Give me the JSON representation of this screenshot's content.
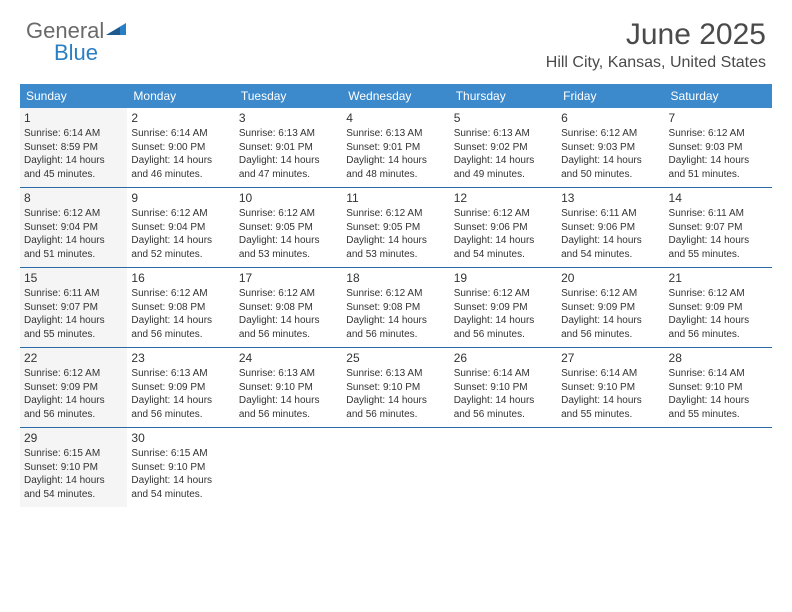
{
  "logo": {
    "text1": "General",
    "text2": "Blue"
  },
  "title": "June 2025",
  "location": "Hill City, Kansas, United States",
  "colors": {
    "header_bg": "#3c8acc",
    "header_text": "#ffffff",
    "row_border": "#2a6aa8",
    "shade_bg": "#f5f5f5",
    "logo_gray": "#6a6a6a",
    "logo_blue": "#2a7fc4"
  },
  "day_labels": [
    "Sunday",
    "Monday",
    "Tuesday",
    "Wednesday",
    "Thursday",
    "Friday",
    "Saturday"
  ],
  "weeks": [
    [
      {
        "n": "1",
        "sr": "6:14 AM",
        "ss": "8:59 PM",
        "dl": "14 hours and 45 minutes.",
        "shade": true
      },
      {
        "n": "2",
        "sr": "6:14 AM",
        "ss": "9:00 PM",
        "dl": "14 hours and 46 minutes."
      },
      {
        "n": "3",
        "sr": "6:13 AM",
        "ss": "9:01 PM",
        "dl": "14 hours and 47 minutes."
      },
      {
        "n": "4",
        "sr": "6:13 AM",
        "ss": "9:01 PM",
        "dl": "14 hours and 48 minutes."
      },
      {
        "n": "5",
        "sr": "6:13 AM",
        "ss": "9:02 PM",
        "dl": "14 hours and 49 minutes."
      },
      {
        "n": "6",
        "sr": "6:12 AM",
        "ss": "9:03 PM",
        "dl": "14 hours and 50 minutes."
      },
      {
        "n": "7",
        "sr": "6:12 AM",
        "ss": "9:03 PM",
        "dl": "14 hours and 51 minutes."
      }
    ],
    [
      {
        "n": "8",
        "sr": "6:12 AM",
        "ss": "9:04 PM",
        "dl": "14 hours and 51 minutes.",
        "shade": true
      },
      {
        "n": "9",
        "sr": "6:12 AM",
        "ss": "9:04 PM",
        "dl": "14 hours and 52 minutes."
      },
      {
        "n": "10",
        "sr": "6:12 AM",
        "ss": "9:05 PM",
        "dl": "14 hours and 53 minutes."
      },
      {
        "n": "11",
        "sr": "6:12 AM",
        "ss": "9:05 PM",
        "dl": "14 hours and 53 minutes."
      },
      {
        "n": "12",
        "sr": "6:12 AM",
        "ss": "9:06 PM",
        "dl": "14 hours and 54 minutes."
      },
      {
        "n": "13",
        "sr": "6:11 AM",
        "ss": "9:06 PM",
        "dl": "14 hours and 54 minutes."
      },
      {
        "n": "14",
        "sr": "6:11 AM",
        "ss": "9:07 PM",
        "dl": "14 hours and 55 minutes."
      }
    ],
    [
      {
        "n": "15",
        "sr": "6:11 AM",
        "ss": "9:07 PM",
        "dl": "14 hours and 55 minutes.",
        "shade": true
      },
      {
        "n": "16",
        "sr": "6:12 AM",
        "ss": "9:08 PM",
        "dl": "14 hours and 56 minutes."
      },
      {
        "n": "17",
        "sr": "6:12 AM",
        "ss": "9:08 PM",
        "dl": "14 hours and 56 minutes."
      },
      {
        "n": "18",
        "sr": "6:12 AM",
        "ss": "9:08 PM",
        "dl": "14 hours and 56 minutes."
      },
      {
        "n": "19",
        "sr": "6:12 AM",
        "ss": "9:09 PM",
        "dl": "14 hours and 56 minutes."
      },
      {
        "n": "20",
        "sr": "6:12 AM",
        "ss": "9:09 PM",
        "dl": "14 hours and 56 minutes."
      },
      {
        "n": "21",
        "sr": "6:12 AM",
        "ss": "9:09 PM",
        "dl": "14 hours and 56 minutes."
      }
    ],
    [
      {
        "n": "22",
        "sr": "6:12 AM",
        "ss": "9:09 PM",
        "dl": "14 hours and 56 minutes.",
        "shade": true
      },
      {
        "n": "23",
        "sr": "6:13 AM",
        "ss": "9:09 PM",
        "dl": "14 hours and 56 minutes."
      },
      {
        "n": "24",
        "sr": "6:13 AM",
        "ss": "9:10 PM",
        "dl": "14 hours and 56 minutes."
      },
      {
        "n": "25",
        "sr": "6:13 AM",
        "ss": "9:10 PM",
        "dl": "14 hours and 56 minutes."
      },
      {
        "n": "26",
        "sr": "6:14 AM",
        "ss": "9:10 PM",
        "dl": "14 hours and 56 minutes."
      },
      {
        "n": "27",
        "sr": "6:14 AM",
        "ss": "9:10 PM",
        "dl": "14 hours and 55 minutes."
      },
      {
        "n": "28",
        "sr": "6:14 AM",
        "ss": "9:10 PM",
        "dl": "14 hours and 55 minutes."
      }
    ],
    [
      {
        "n": "29",
        "sr": "6:15 AM",
        "ss": "9:10 PM",
        "dl": "14 hours and 54 minutes.",
        "shade": true
      },
      {
        "n": "30",
        "sr": "6:15 AM",
        "ss": "9:10 PM",
        "dl": "14 hours and 54 minutes."
      },
      {
        "empty": true
      },
      {
        "empty": true
      },
      {
        "empty": true
      },
      {
        "empty": true
      },
      {
        "empty": true
      }
    ]
  ],
  "labels": {
    "sunrise": "Sunrise: ",
    "sunset": "Sunset: ",
    "daylight": "Daylight: "
  }
}
